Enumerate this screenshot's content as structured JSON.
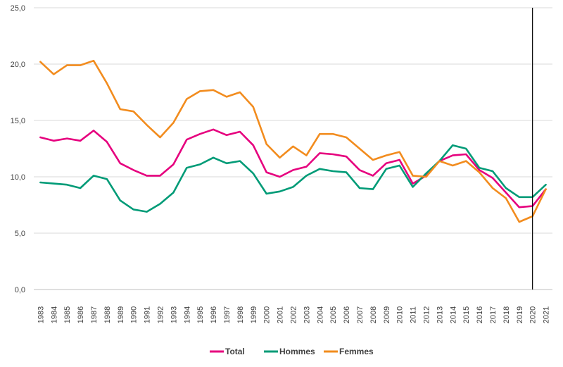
{
  "chart_data": {
    "type": "line",
    "x": [
      "1983",
      "1984",
      "1985",
      "1986",
      "1987",
      "1988",
      "1989",
      "1990",
      "1991",
      "1992",
      "1993",
      "1994",
      "1995",
      "1996",
      "1997",
      "1998",
      "1999",
      "2000",
      "2001",
      "2002",
      "2003",
      "2004",
      "2005",
      "2006",
      "2007",
      "2008",
      "2009",
      "2010",
      "2011",
      "2012",
      "2013",
      "2014",
      "2015",
      "2016",
      "2017",
      "2018",
      "2019",
      "2020",
      "2021"
    ],
    "ylim": [
      0,
      25
    ],
    "yticks": [
      "0,0",
      "5,0",
      "10,0",
      "15,0",
      "20,0",
      "25,0"
    ],
    "grid": true,
    "vertical_marker": "2020",
    "legend_position": "bottom",
    "series": [
      {
        "name": "Total",
        "color": "#e6007e",
        "values": [
          13.5,
          13.2,
          13.4,
          13.2,
          14.1,
          13.1,
          11.2,
          10.6,
          10.1,
          10.1,
          11.1,
          13.3,
          13.8,
          14.2,
          13.7,
          14.0,
          12.8,
          10.4,
          10.0,
          10.6,
          10.9,
          12.1,
          12.0,
          11.8,
          10.6,
          10.1,
          11.2,
          11.5,
          9.4,
          10.1,
          11.4,
          11.9,
          12.0,
          10.6,
          9.9,
          8.6,
          7.3,
          7.4,
          8.9
        ]
      },
      {
        "name": "Hommes",
        "color": "#009b77",
        "values": [
          9.5,
          9.4,
          9.3,
          9.0,
          10.1,
          9.8,
          7.9,
          7.1,
          6.9,
          7.6,
          8.6,
          10.8,
          11.1,
          11.7,
          11.2,
          11.4,
          10.3,
          8.5,
          8.7,
          9.1,
          10.1,
          10.7,
          10.5,
          10.4,
          9.0,
          8.9,
          10.7,
          11.0,
          9.1,
          10.3,
          11.4,
          12.8,
          12.5,
          10.8,
          10.5,
          9.0,
          8.2,
          8.2,
          9.3
        ]
      },
      {
        "name": "Femmes",
        "color": "#f28c1e",
        "values": [
          20.2,
          19.1,
          19.9,
          19.9,
          20.3,
          18.3,
          16.0,
          15.8,
          14.6,
          13.5,
          14.8,
          16.9,
          17.6,
          17.7,
          17.1,
          17.5,
          16.2,
          12.9,
          11.7,
          12.7,
          11.9,
          13.8,
          13.8,
          13.5,
          12.5,
          11.5,
          11.9,
          12.2,
          10.1,
          10.0,
          11.4,
          11.0,
          11.4,
          10.4,
          9.0,
          8.1,
          6.0,
          6.5,
          8.9
        ]
      }
    ]
  }
}
